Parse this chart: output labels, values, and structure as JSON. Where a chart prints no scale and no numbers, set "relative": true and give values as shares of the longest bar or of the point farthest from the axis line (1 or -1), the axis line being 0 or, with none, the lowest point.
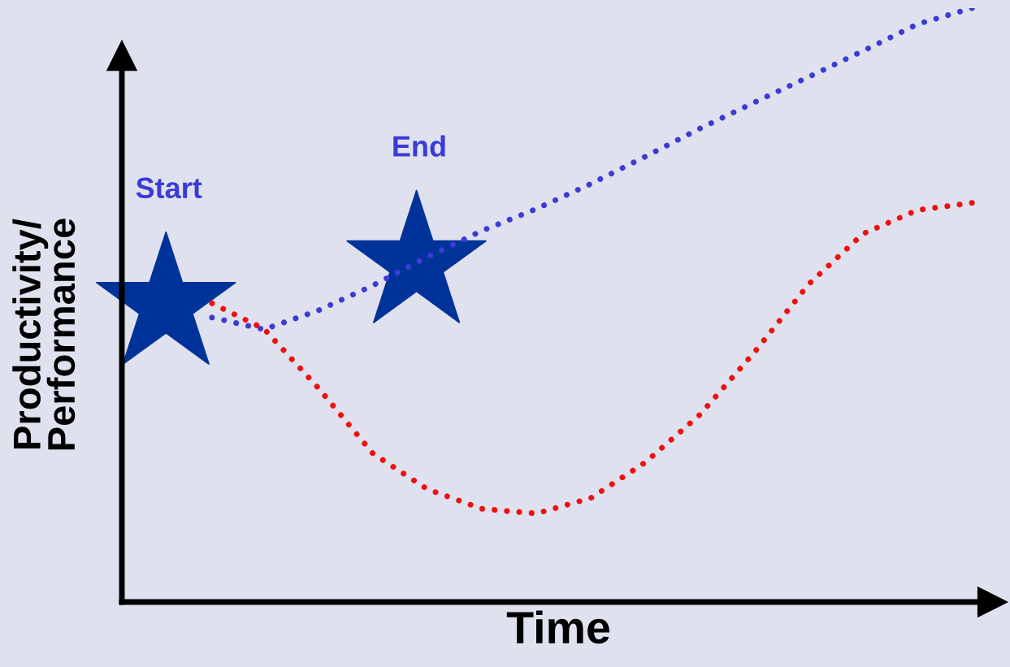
{
  "chart_data": {
    "type": "line",
    "relative": true,
    "xlabel": "Time",
    "ylabel": "Productivity/\nPerformance",
    "categories": [
      null,
      null,
      null,
      null,
      null,
      null,
      null,
      null,
      null,
      null,
      null,
      null,
      null,
      null,
      null
    ],
    "series": [
      {
        "color": "#3b3bd6",
        "values": [
          0.48,
          0.459,
          0.491,
          0.533,
          0.581,
          0.625,
          0.662,
          0.704,
          0.75,
          0.797,
          0.841,
          0.884,
          0.928,
          0.973,
          1.0
        ]
      },
      {
        "color": "#ee1111",
        "values": [
          0.505,
          0.46,
          0.36,
          0.25,
          0.19,
          0.157,
          0.149,
          0.175,
          0.235,
          0.315,
          0.42,
          0.535,
          0.62,
          0.66,
          0.672
        ]
      }
    ],
    "annotations": [
      "Start",
      "End"
    ],
    "line_style": "dotted",
    "marker": "none",
    "grid": false,
    "legend": false
  }
}
